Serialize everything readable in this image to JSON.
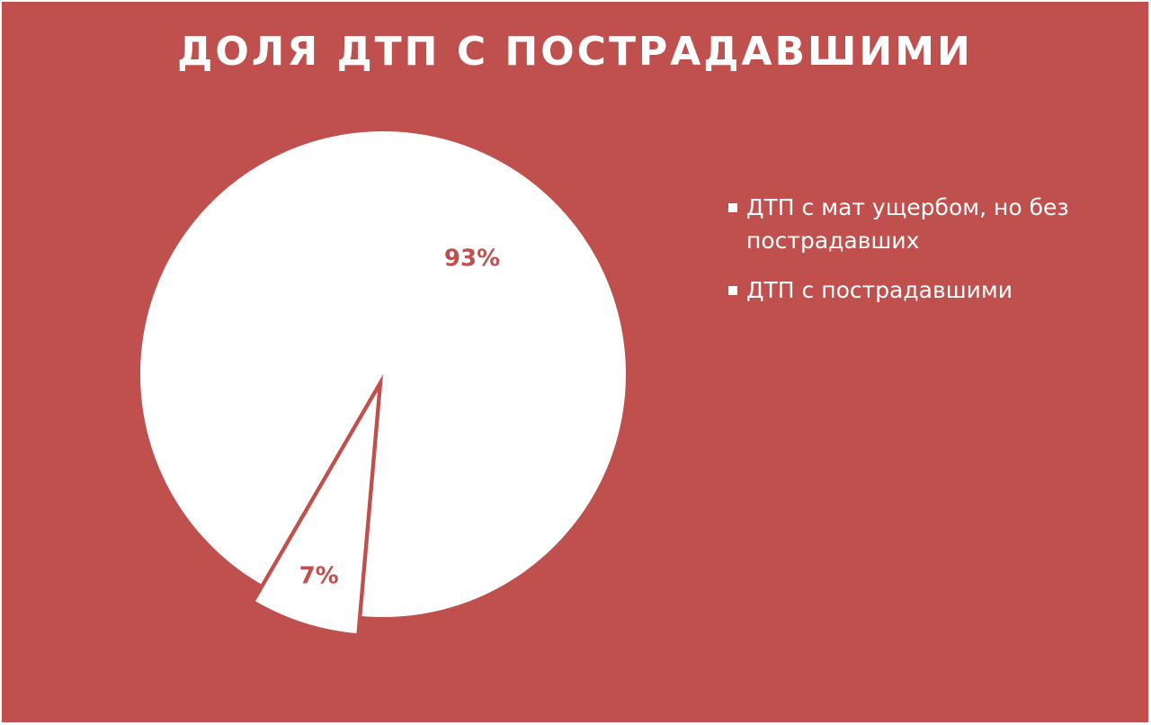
{
  "chart_data": {
    "type": "pie",
    "title": "ДОЛЯ ДТП С ПОСТРАДАВШИМИ",
    "categories": [
      "ДТП с мат ущербом, но без пострадавших",
      "ДТП с пострадавшими"
    ],
    "values": [
      93,
      7
    ],
    "data_labels": [
      "93%",
      "7%"
    ],
    "exploded": [
      false,
      true
    ],
    "legend_position": "right",
    "colors": {
      "background": "#C0504D",
      "slice_fill": "#FFFFFF",
      "label_text": "#C0504D",
      "title_text": "#FFFFFF",
      "legend_text": "#FFFFFF"
    }
  }
}
